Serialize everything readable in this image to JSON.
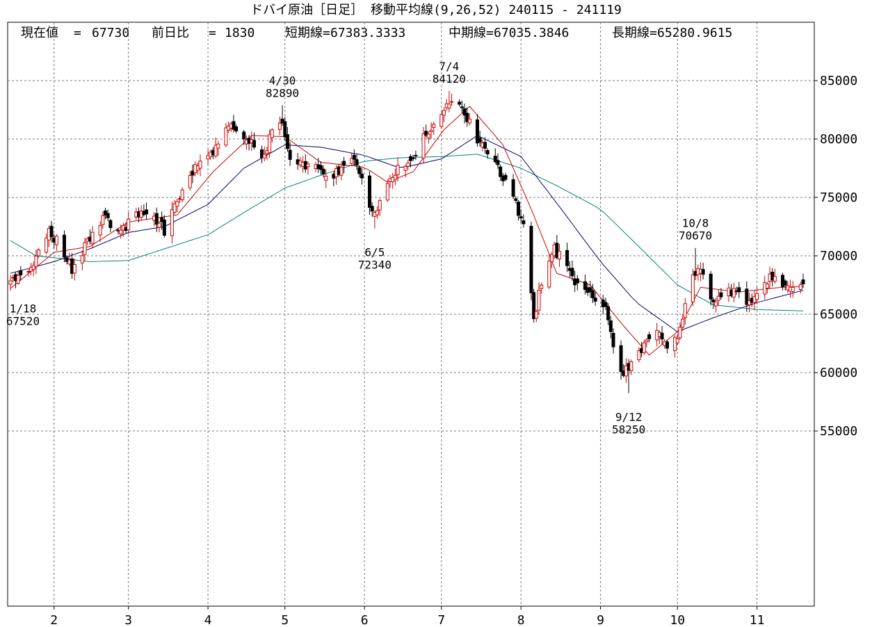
{
  "title": "ドバイ原油［日足］ 移動平均線(9,26,52)  240115 - 241119",
  "info": {
    "current_label": "現在値",
    "current_value": "67730",
    "change_label": "前日比",
    "change_value": "1830",
    "short_label": "短期線",
    "short_value": "67383.3333",
    "mid_label": "中期線",
    "mid_value": "67035.3846",
    "long_label": "長期線",
    "long_value": "65280.9615"
  },
  "colors": {
    "up": "#cc0000",
    "down": "#000000",
    "ma_short": "#cc0000",
    "ma_mid": "#00006e",
    "ma_long": "#00807a",
    "grid": "#777777"
  },
  "chart_data": {
    "type": "candlestick",
    "title": "ドバイ原油［日足］ 移動平均線(9,26,52)  240115 - 241119",
    "ylim": [
      40000,
      90000
    ],
    "yticks": [
      "85000",
      "80000",
      "75000",
      "70000",
      "65000",
      "60000",
      "55000"
    ],
    "ytick_values": [
      85000,
      80000,
      75000,
      70000,
      65000,
      60000,
      55000
    ],
    "xticks": [
      "2",
      "3",
      "4",
      "5",
      "6",
      "7",
      "8",
      "9",
      "10",
      "11"
    ],
    "xtick_dates": [
      "2024-02-01",
      "2024-03-01",
      "2024-04-01",
      "2024-05-01",
      "2024-06-01",
      "2024-07-01",
      "2024-08-01",
      "2024-09-01",
      "2024-10-01",
      "2024-11-01"
    ],
    "date_range": [
      "2024-01-15",
      "2024-11-19"
    ],
    "grid": true,
    "close_anchors": [
      [
        "2024-01-15",
        68200
      ],
      [
        "2024-01-18",
        67900
      ],
      [
        "2024-01-25",
        69800
      ],
      [
        "2024-01-30",
        72300
      ],
      [
        "2024-02-05",
        70200
      ],
      [
        "2024-02-08",
        68800
      ],
      [
        "2024-02-15",
        71500
      ],
      [
        "2024-02-20",
        73200
      ],
      [
        "2024-02-27",
        72200
      ],
      [
        "2024-03-05",
        73600
      ],
      [
        "2024-03-11",
        73300
      ],
      [
        "2024-03-15",
        72200
      ],
      [
        "2024-03-20",
        74800
      ],
      [
        "2024-03-27",
        77500
      ],
      [
        "2024-04-02",
        78500
      ],
      [
        "2024-04-08",
        81000
      ],
      [
        "2024-04-12",
        80800
      ],
      [
        "2024-04-18",
        79800
      ],
      [
        "2024-04-23",
        78400
      ],
      [
        "2024-04-26",
        80900
      ],
      [
        "2024-04-30",
        81500
      ],
      [
        "2024-05-03",
        78200
      ],
      [
        "2024-05-08",
        77800
      ],
      [
        "2024-05-15",
        77300
      ],
      [
        "2024-05-22",
        77000
      ],
      [
        "2024-05-28",
        78700
      ],
      [
        "2024-06-03",
        74400
      ],
      [
        "2024-06-05",
        73300
      ],
      [
        "2024-06-10",
        76000
      ],
      [
        "2024-06-14",
        77500
      ],
      [
        "2024-06-20",
        78200
      ],
      [
        "2024-06-25",
        80500
      ],
      [
        "2024-07-02",
        82800
      ],
      [
        "2024-07-05",
        83200
      ],
      [
        "2024-07-10",
        82200
      ],
      [
        "2024-07-15",
        80000
      ],
      [
        "2024-07-22",
        77800
      ],
      [
        "2024-07-29",
        75200
      ],
      [
        "2024-08-02",
        72300
      ],
      [
        "2024-08-06",
        64500
      ],
      [
        "2024-08-09",
        67800
      ],
      [
        "2024-08-14",
        70500
      ],
      [
        "2024-08-19",
        69300
      ],
      [
        "2024-08-23",
        67500
      ],
      [
        "2024-08-28",
        66800
      ],
      [
        "2024-09-03",
        65500
      ],
      [
        "2024-09-06",
        62500
      ],
      [
        "2024-09-10",
        59800
      ],
      [
        "2024-09-12",
        60500
      ],
      [
        "2024-09-17",
        62000
      ],
      [
        "2024-09-23",
        63500
      ],
      [
        "2024-09-27",
        62200
      ],
      [
        "2024-10-02",
        63500
      ],
      [
        "2024-10-07",
        68800
      ],
      [
        "2024-10-10",
        68500
      ],
      [
        "2024-10-15",
        66300
      ],
      [
        "2024-10-21",
        67000
      ],
      [
        "2024-10-25",
        66600
      ],
      [
        "2024-10-29",
        65800
      ],
      [
        "2024-11-04",
        67600
      ],
      [
        "2024-11-08",
        68400
      ],
      [
        "2024-11-13",
        67200
      ],
      [
        "2024-11-19",
        67730
      ]
    ],
    "ma_short_anchors": [
      [
        "2024-01-15",
        67200
      ],
      [
        "2024-02-01",
        70300
      ],
      [
        "2024-02-15",
        70800
      ],
      [
        "2024-03-01",
        72900
      ],
      [
        "2024-03-20",
        73500
      ],
      [
        "2024-04-03",
        77200
      ],
      [
        "2024-04-18",
        80300
      ],
      [
        "2024-05-01",
        80200
      ],
      [
        "2024-05-15",
        78000
      ],
      [
        "2024-06-01",
        77600
      ],
      [
        "2024-06-10",
        76300
      ],
      [
        "2024-06-20",
        77200
      ],
      [
        "2024-07-02",
        80800
      ],
      [
        "2024-07-12",
        82800
      ],
      [
        "2024-07-25",
        79500
      ],
      [
        "2024-08-05",
        74000
      ],
      [
        "2024-08-15",
        68500
      ],
      [
        "2024-08-28",
        67500
      ],
      [
        "2024-09-10",
        64000
      ],
      [
        "2024-09-20",
        61500
      ],
      [
        "2024-10-01",
        63500
      ],
      [
        "2024-10-10",
        67300
      ],
      [
        "2024-10-25",
        66900
      ],
      [
        "2024-11-10",
        67300
      ],
      [
        "2024-11-19",
        67380
      ]
    ],
    "ma_mid_anchors": [
      [
        "2024-01-15",
        68500
      ],
      [
        "2024-02-01",
        69500
      ],
      [
        "2024-02-15",
        70600
      ],
      [
        "2024-03-01",
        72000
      ],
      [
        "2024-03-15",
        72500
      ],
      [
        "2024-04-01",
        74400
      ],
      [
        "2024-04-15",
        77500
      ],
      [
        "2024-05-01",
        79500
      ],
      [
        "2024-05-15",
        79300
      ],
      [
        "2024-06-01",
        78600
      ],
      [
        "2024-06-15",
        77500
      ],
      [
        "2024-07-01",
        78300
      ],
      [
        "2024-07-15",
        80300
      ],
      [
        "2024-08-01",
        78500
      ],
      [
        "2024-08-15",
        74500
      ],
      [
        "2024-09-01",
        69500
      ],
      [
        "2024-09-15",
        66000
      ],
      [
        "2024-10-01",
        63500
      ],
      [
        "2024-10-15",
        64700
      ],
      [
        "2024-11-01",
        66000
      ],
      [
        "2024-11-19",
        67040
      ]
    ],
    "ma_long_anchors": [
      [
        "2024-01-15",
        71300
      ],
      [
        "2024-01-25",
        70000
      ],
      [
        "2024-02-15",
        69500
      ],
      [
        "2024-03-01",
        69600
      ],
      [
        "2024-04-01",
        71800
      ],
      [
        "2024-04-15",
        73700
      ],
      [
        "2024-05-01",
        75800
      ],
      [
        "2024-05-15",
        76900
      ],
      [
        "2024-06-01",
        78100
      ],
      [
        "2024-06-15",
        78400
      ],
      [
        "2024-07-01",
        78500
      ],
      [
        "2024-07-15",
        78700
      ],
      [
        "2024-08-01",
        77500
      ],
      [
        "2024-08-15",
        76000
      ],
      [
        "2024-09-01",
        74000
      ],
      [
        "2024-09-15",
        71000
      ],
      [
        "2024-10-01",
        67500
      ],
      [
        "2024-10-15",
        65800
      ],
      [
        "2024-11-01",
        65400
      ],
      [
        "2024-11-19",
        65280
      ]
    ],
    "annotations": [
      {
        "date": "2024-01-18",
        "value": 67520,
        "label": "1/18",
        "price": "67520",
        "kind": "low"
      },
      {
        "date": "2024-04-30",
        "value": 82890,
        "label": "4/30",
        "price": "82890",
        "kind": "high"
      },
      {
        "date": "2024-06-05",
        "value": 72340,
        "label": "6/5",
        "price": "72340",
        "kind": "low"
      },
      {
        "date": "2024-07-04",
        "value": 84120,
        "label": "7/4",
        "price": "84120",
        "kind": "high"
      },
      {
        "date": "2024-09-12",
        "value": 58250,
        "label": "9/12",
        "price": "58250",
        "kind": "low"
      },
      {
        "date": "2024-10-08",
        "value": 70670,
        "label": "10/8",
        "price": "70670",
        "kind": "high"
      }
    ]
  }
}
